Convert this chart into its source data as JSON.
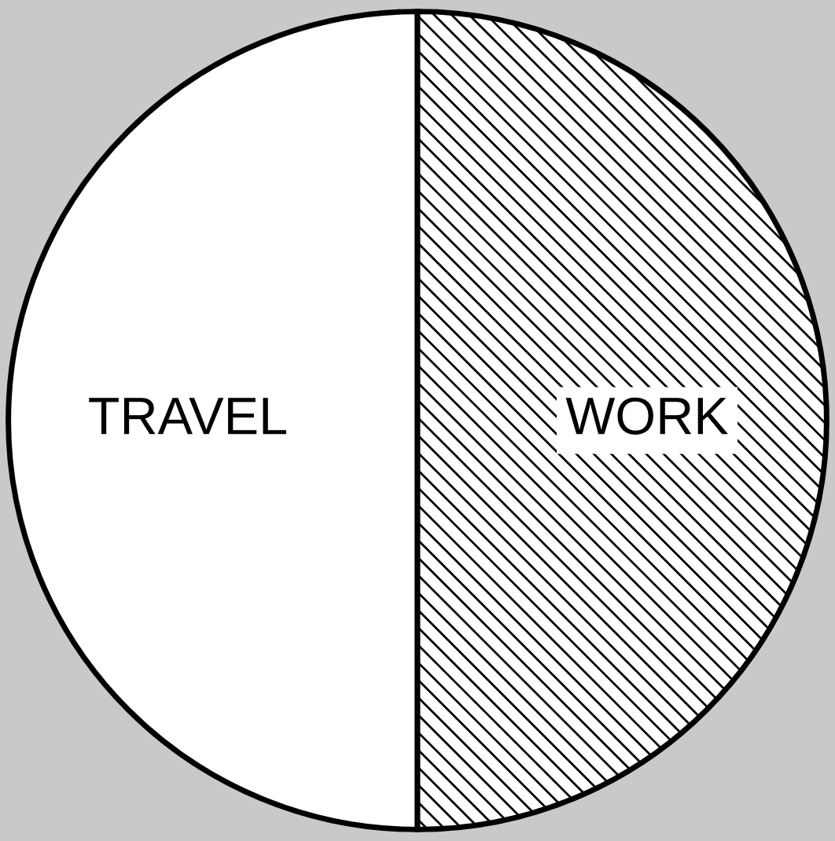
{
  "chart_data": {
    "type": "pie",
    "categories": [
      "TRAVEL",
      "WORK"
    ],
    "values": [
      50,
      50
    ],
    "colors": [
      "#ffffff",
      "#000000"
    ]
  }
}
